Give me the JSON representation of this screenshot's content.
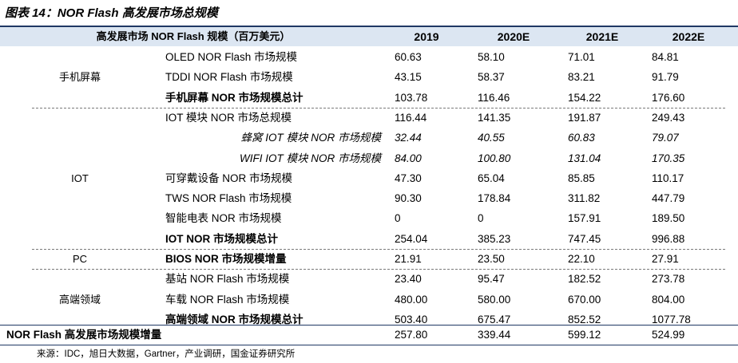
{
  "title": "图表 14：NOR Flash 高发展市场总规模",
  "table": {
    "header_label": "高发展市场 NOR Flash 规模（百万美元）",
    "years": [
      "2019",
      "2020E",
      "2021E",
      "2022E"
    ],
    "groups": [
      {
        "category": "手机屏幕",
        "rows": [
          {
            "item": "OLED NOR Flash 市场规模",
            "values": [
              "60.63",
              "58.10",
              "71.01",
              "84.81"
            ],
            "style": "normal"
          },
          {
            "item": "TDDI NOR Flash 市场规模",
            "values": [
              "43.15",
              "58.37",
              "83.21",
              "91.79"
            ],
            "style": "normal"
          },
          {
            "item": "手机屏幕 NOR 市场规模总计",
            "values": [
              "103.78",
              "116.46",
              "154.22",
              "176.60"
            ],
            "style": "total"
          }
        ]
      },
      {
        "category": "IOT",
        "rows": [
          {
            "item": "IOT 模块 NOR 市场总规模",
            "values": [
              "116.44",
              "141.35",
              "191.87",
              "249.43"
            ],
            "style": "normal"
          },
          {
            "item": "蜂窝 IOT 模块 NOR 市场规模",
            "values": [
              "32.44",
              "40.55",
              "60.83",
              "79.07"
            ],
            "style": "sub"
          },
          {
            "item": "WIFI IOT 模块 NOR 市场规模",
            "values": [
              "84.00",
              "100.80",
              "131.04",
              "170.35"
            ],
            "style": "sub"
          },
          {
            "item": "可穿戴设备 NOR 市场规模",
            "values": [
              "47.30",
              "65.04",
              "85.85",
              "110.17"
            ],
            "style": "normal"
          },
          {
            "item": "TWS NOR Flash 市场规模",
            "values": [
              "90.30",
              "178.84",
              "311.82",
              "447.79"
            ],
            "style": "normal"
          },
          {
            "item": "智能电表 NOR 市场规模",
            "values": [
              "0",
              "0",
              "157.91",
              "189.50"
            ],
            "style": "normal"
          },
          {
            "item": "IOT NOR 市场规模总计",
            "values": [
              "254.04",
              "385.23",
              "747.45",
              "996.88"
            ],
            "style": "total"
          }
        ]
      },
      {
        "category": "PC",
        "rows": [
          {
            "item": "BIOS NOR 市场规模增量",
            "values": [
              "21.91",
              "23.50",
              "22.10",
              "27.91"
            ],
            "style": "total"
          }
        ]
      },
      {
        "category": "高端领域",
        "rows": [
          {
            "item": "基站 NOR Flash 市场规模",
            "values": [
              "23.40",
              "95.47",
              "182.52",
              "273.78"
            ],
            "style": "normal"
          },
          {
            "item": "车载 NOR Flash 市场规模",
            "values": [
              "480.00",
              "580.00",
              "670.00",
              "804.00"
            ],
            "style": "normal"
          },
          {
            "item": "高端领域 NOR 市场规模总计",
            "values": [
              "503.40",
              "675.47",
              "852.52",
              "1077.78"
            ],
            "style": "total"
          }
        ]
      }
    ],
    "grand_total": {
      "label": "NOR Flash 高发展市场规模增量",
      "values": [
        "257.80",
        "339.44",
        "599.12",
        "524.99"
      ]
    }
  },
  "source": "来源：IDC，旭日大数据，Gartner，产业调研，国金证券研究所"
}
